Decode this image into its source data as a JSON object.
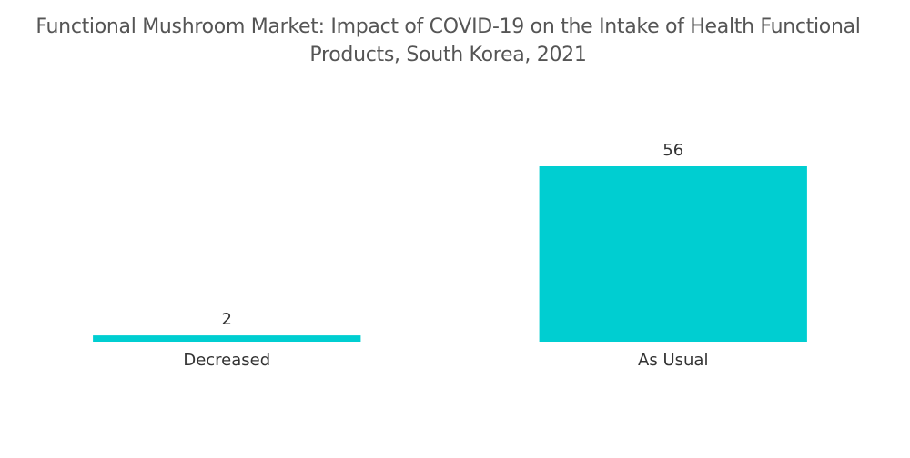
{
  "chart_data": {
    "type": "bar",
    "title": "Functional Mushroom Market: Impact of COVID-19 on the Intake of Health Functional Products, South Korea, 2021",
    "categories": [
      "Decreased",
      "As Usual"
    ],
    "values": [
      2,
      56
    ],
    "color": "#00ced1"
  }
}
